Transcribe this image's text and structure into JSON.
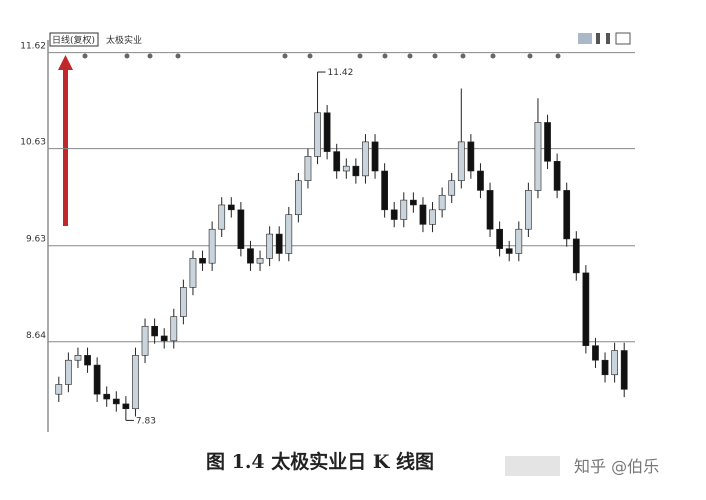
{
  "chart_data": {
    "type": "candlestick",
    "legend_label": "日线(复权)",
    "stock_name": "太极实业",
    "caption": "图 1.4   太极实业日 K 线图",
    "watermark": "知乎 @伯乐",
    "max_label": "11.42",
    "min_label": "7.83",
    "ylim": [
      7.7,
      11.75
    ],
    "yticks": [
      8.64,
      9.63,
      10.63,
      11.62
    ],
    "grid": true,
    "up_color": "#c9d4dc",
    "down_color": "#111111",
    "series": [
      {
        "open": [
          8.1,
          8.2,
          8.45,
          8.5,
          8.4,
          8.1,
          8.05,
          8.0,
          7.95,
          8.5,
          8.8,
          8.7,
          8.65,
          8.9,
          9.2,
          9.5,
          9.45,
          9.8,
          10.05,
          10.0,
          9.6,
          9.45,
          9.5,
          9.75,
          9.55,
          9.95,
          10.3,
          10.55,
          11.0,
          10.6,
          10.4,
          10.45,
          10.35,
          10.7,
          10.4,
          10.0,
          9.9,
          10.1,
          10.05,
          9.85,
          10.0,
          10.15,
          10.3,
          10.7,
          10.4,
          10.2,
          9.8,
          9.6,
          9.55,
          9.8,
          10.2,
          10.9,
          10.5,
          10.2,
          9.7,
          9.35,
          8.6,
          8.45,
          8.3,
          8.55
        ],
        "high": [
          8.28,
          8.53,
          8.58,
          8.58,
          8.48,
          8.18,
          8.13,
          8.08,
          8.58,
          8.88,
          8.88,
          8.78,
          8.98,
          9.28,
          9.58,
          9.58,
          9.88,
          10.13,
          10.13,
          10.08,
          9.68,
          9.58,
          9.83,
          9.83,
          10.03,
          10.38,
          10.63,
          11.42,
          11.08,
          10.68,
          10.53,
          10.53,
          10.78,
          10.78,
          10.48,
          10.08,
          10.18,
          10.18,
          10.13,
          10.08,
          10.23,
          10.38,
          11.25,
          10.78,
          10.48,
          10.28,
          9.88,
          9.68,
          9.88,
          10.28,
          11.15,
          10.98,
          10.58,
          10.28,
          9.78,
          9.43,
          8.68,
          8.53,
          8.63,
          8.63
        ],
        "low": [
          8.02,
          8.12,
          8.37,
          8.32,
          8.02,
          7.97,
          7.92,
          7.83,
          7.87,
          8.42,
          8.62,
          8.57,
          8.57,
          8.82,
          9.12,
          9.37,
          9.37,
          9.72,
          9.92,
          9.52,
          9.37,
          9.37,
          9.42,
          9.47,
          9.47,
          9.87,
          10.22,
          10.47,
          10.52,
          10.32,
          10.32,
          10.27,
          10.27,
          10.32,
          9.92,
          9.82,
          9.82,
          9.97,
          9.77,
          9.77,
          9.92,
          10.07,
          10.22,
          10.32,
          10.12,
          9.72,
          9.52,
          9.47,
          9.47,
          9.72,
          10.12,
          10.42,
          10.12,
          9.62,
          9.27,
          8.52,
          8.37,
          8.22,
          8.22,
          8.07
        ],
        "close": [
          8.2,
          8.45,
          8.5,
          8.4,
          8.1,
          8.05,
          8.0,
          7.95,
          8.5,
          8.8,
          8.7,
          8.65,
          8.9,
          9.2,
          9.5,
          9.45,
          9.8,
          10.05,
          10.0,
          9.6,
          9.45,
          9.5,
          9.75,
          9.55,
          9.95,
          10.3,
          10.55,
          11.0,
          10.6,
          10.4,
          10.45,
          10.35,
          10.7,
          10.4,
          10.0,
          9.9,
          10.1,
          10.05,
          9.85,
          10.0,
          10.15,
          10.3,
          10.7,
          10.4,
          10.2,
          9.8,
          9.6,
          9.55,
          9.8,
          10.2,
          10.9,
          10.5,
          10.2,
          9.7,
          9.35,
          8.6,
          8.45,
          8.3,
          8.55,
          8.15
        ]
      }
    ]
  }
}
